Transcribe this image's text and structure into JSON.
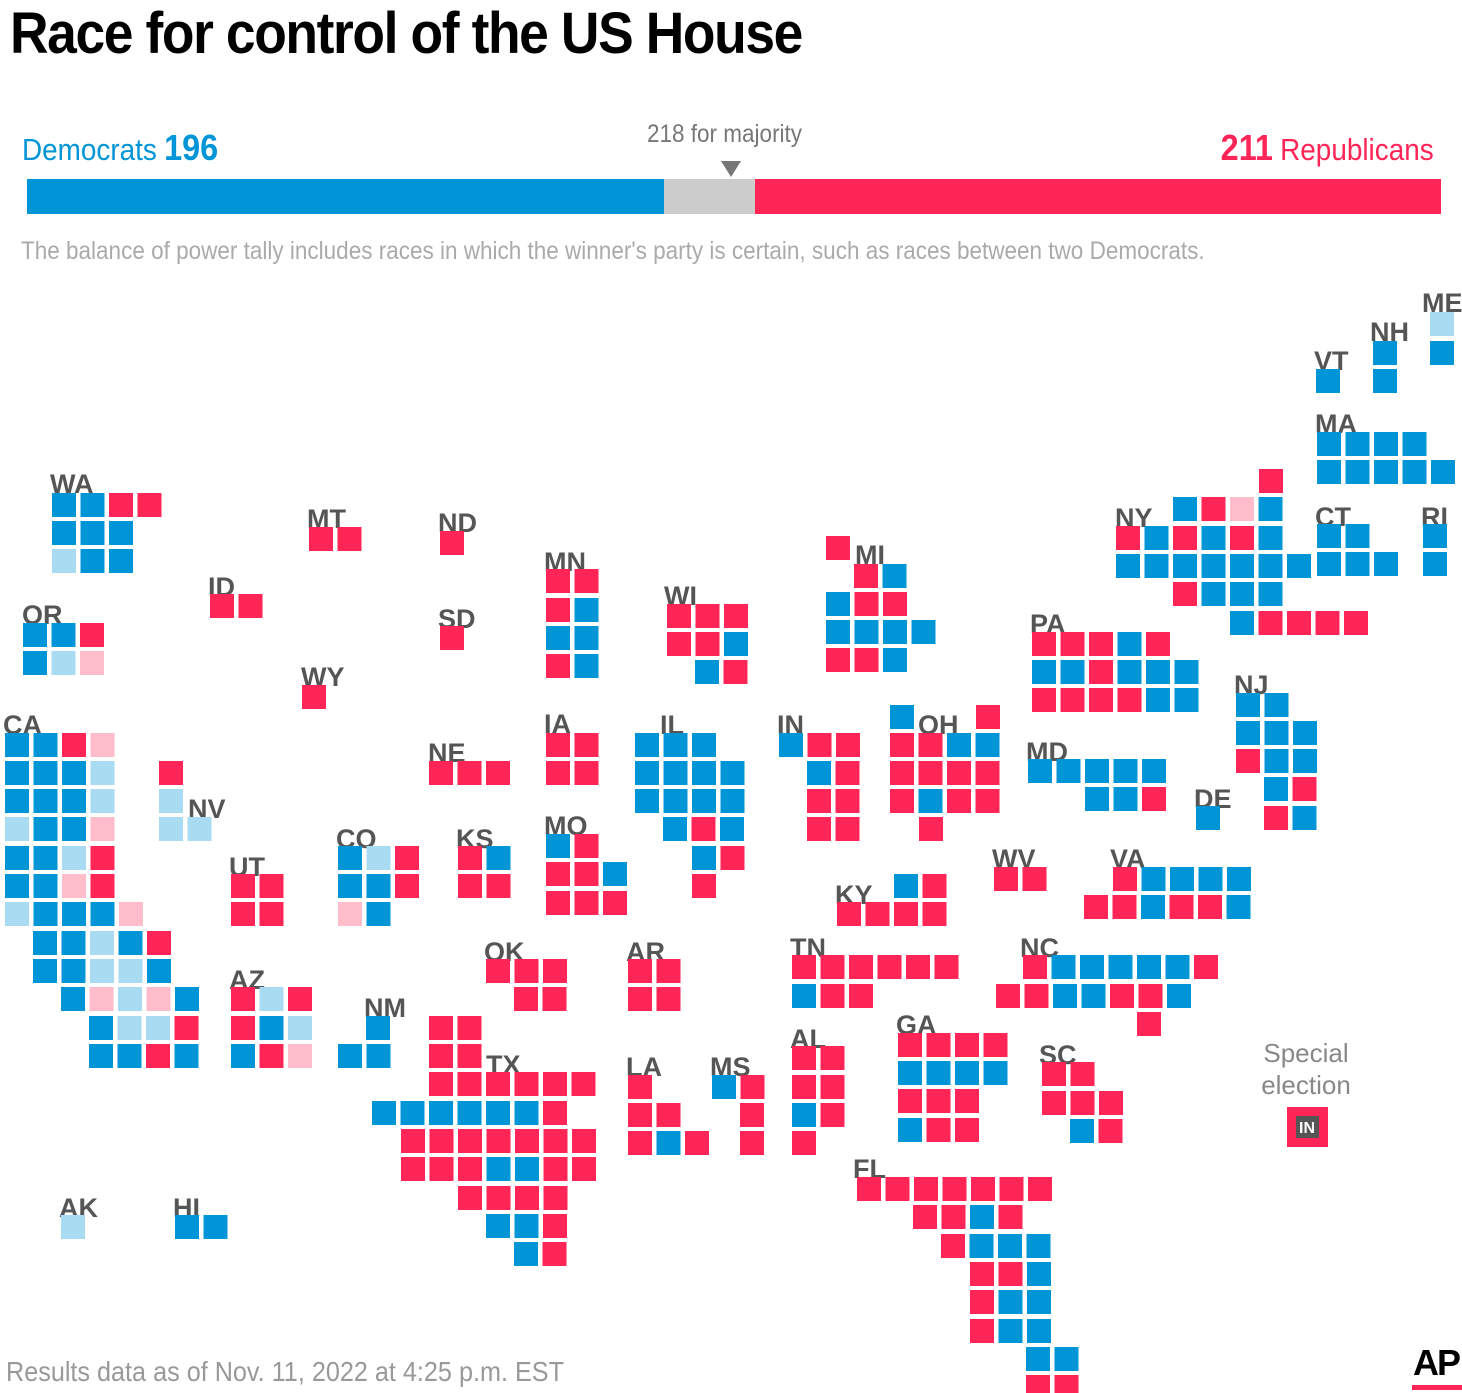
{
  "title": "Race for control of the US House",
  "tally": {
    "dem_label": "Democrats",
    "dem_seats": "196",
    "rep_label": "Republicans",
    "rep_seats": "211",
    "majority_label": "218 for majority",
    "total_seats": 435,
    "dem_count": 196,
    "rep_count": 211
  },
  "note": "The balance of power tally includes races in which the winner's party is certain, such as races between two Democrats.",
  "footer": "Results data as of Nov. 11, 2022 at 4:25 p.m. EST",
  "logo": "AP",
  "legend": {
    "line1": "Special",
    "line2": "election",
    "state_abbr": "IN"
  },
  "colors": {
    "dem": "#0095d6",
    "rep": "#ff2657",
    "dem_leaning": "#a9dcf2",
    "rep_leaning": "#ffbccb",
    "undecided": "#cccccc"
  },
  "states": [
    {
      "abbr": "WA",
      "seats": "DDRR|DDD|dDD"
    },
    {
      "abbr": "OR",
      "seats": "DDR|Ddr"
    },
    {
      "abbr": "CA",
      "seats": "DDRr|DDDd|DDDd|dDDr|DDdR|DDrR|dDDDr|DDdDR|DDddD|DrdrD|DddR|DDRD"
    },
    {
      "abbr": "NV",
      "seats": "R|d|dd"
    },
    {
      "abbr": "ID",
      "seats": "RR"
    },
    {
      "abbr": "MT",
      "seats": "RR"
    },
    {
      "abbr": "WY",
      "seats": "R"
    },
    {
      "abbr": "UT",
      "seats": "RR|RR"
    },
    {
      "abbr": "AZ",
      "seats": "RdR|RDd|DRr"
    },
    {
      "abbr": "CO",
      "seats": "DdR|DDR|rD"
    },
    {
      "abbr": "NM",
      "seats": "D|DD"
    },
    {
      "abbr": "ND",
      "seats": "R"
    },
    {
      "abbr": "SD",
      "seats": "R"
    },
    {
      "abbr": "NE",
      "seats": "RRR"
    },
    {
      "abbr": "KS",
      "seats": "RD|RR"
    },
    {
      "abbr": "OK",
      "seats": "RRR|RR"
    },
    {
      "abbr": "TX",
      "seats": "RR|RR|RRRRRR|DDDDDDR|RRRRRRR|RRRDDRR|RRRR|DDR|DR|D"
    },
    {
      "abbr": "MN",
      "seats": "RR|RD|DD|RD"
    },
    {
      "abbr": "IA",
      "seats": "RR|RR"
    },
    {
      "abbr": "MO",
      "seats": "DR|RRD|RRR"
    },
    {
      "abbr": "AR",
      "seats": "RR|RR"
    },
    {
      "abbr": "LA",
      "seats": "R|RR|RDR"
    },
    {
      "abbr": "WI",
      "seats": "RRR|RRD|DR"
    },
    {
      "abbr": "IL",
      "seats": "DDD|DDDD|DDDD|DRD|DR|R"
    },
    {
      "abbr": "MS",
      "seats": "DR|R|R"
    },
    {
      "abbr": "MI",
      "seats": "R|RD|DRR|DDDD|RRD"
    },
    {
      "abbr": "IN",
      "seats": "DRR|DR|RR|RR"
    },
    {
      "abbr": "KY",
      "seats": "DR|RRRR"
    },
    {
      "abbr": "TN",
      "seats": "RRRRRR|DRR"
    },
    {
      "abbr": "AL",
      "seats": "RR|RR|DR|R"
    },
    {
      "abbr": "GA",
      "seats": "RRRR|DDDD|RRR|DRR"
    },
    {
      "abbr": "FL",
      "seats": "RRRRRRR|RRDR|RDDD|RRD|RDD|RDD|DD|RR"
    },
    {
      "abbr": "OH",
      "seats": "D|R|RRDD|RRRR|RDRR|R"
    },
    {
      "abbr": "WV",
      "seats": "RR"
    },
    {
      "abbr": "VA",
      "seats": "RDDDD|RRDRRD"
    },
    {
      "abbr": "NC",
      "seats": "RDDDDDR|RRDDRRD|R"
    },
    {
      "abbr": "SC",
      "seats": "RR|RRR|DR"
    },
    {
      "abbr": "PA",
      "seats": "RRRDR|DDRDDD|RRRRDD"
    },
    {
      "abbr": "MD",
      "seats": "DDDDD|DDR"
    },
    {
      "abbr": "DE",
      "seats": "D"
    },
    {
      "abbr": "NJ",
      "seats": "DD|DDD|RDD|DR|RD"
    },
    {
      "abbr": "NY",
      "seats": "R|DRrD|RDRDRD|DDDDDDD|RDDD|DRRRR"
    },
    {
      "abbr": "CT",
      "seats": "DD|DDD"
    },
    {
      "abbr": "RI",
      "seats": "D|D"
    },
    {
      "abbr": "MA",
      "seats": "DDDD|DDDDD"
    },
    {
      "abbr": "VT",
      "seats": "D"
    },
    {
      "abbr": "NH",
      "seats": "D|D"
    },
    {
      "abbr": "ME",
      "seats": "d|D"
    },
    {
      "abbr": "AK",
      "seats": "d"
    },
    {
      "abbr": "HI",
      "seats": "DD"
    }
  ]
}
